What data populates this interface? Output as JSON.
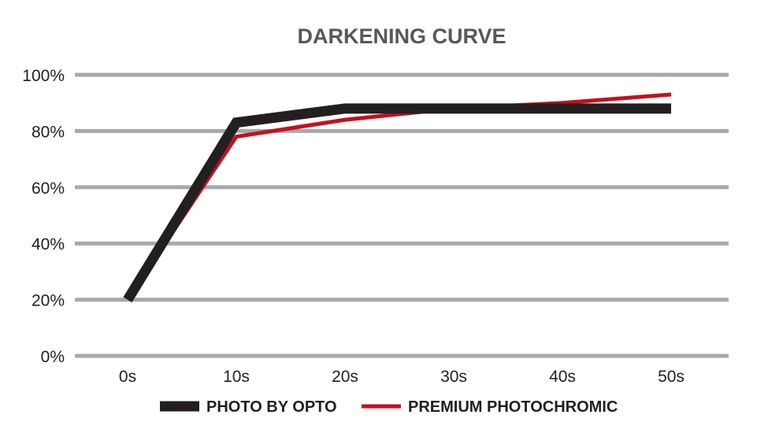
{
  "chart_data": {
    "type": "line",
    "title": "DARKENING CURVE",
    "xlabel": "",
    "ylabel": "",
    "categories": [
      "0s",
      "10s",
      "20s",
      "30s",
      "40s",
      "50s"
    ],
    "y_ticks": [
      0,
      20,
      40,
      60,
      80,
      100
    ],
    "y_tick_labels": [
      "0%",
      "20%",
      "40%",
      "60%",
      "80%",
      "100%"
    ],
    "ylim": [
      0,
      100
    ],
    "grid": true,
    "legend_position": "bottom-center",
    "series": [
      {
        "name": "PHOTO BY OPTO",
        "color": "#231f20",
        "values": [
          20,
          83,
          88,
          88,
          88,
          88
        ]
      },
      {
        "name": "PREMIUM PHOTOCHROMIC",
        "color": "#c1121f",
        "values": [
          20,
          78,
          84,
          88,
          90,
          93
        ]
      }
    ]
  }
}
